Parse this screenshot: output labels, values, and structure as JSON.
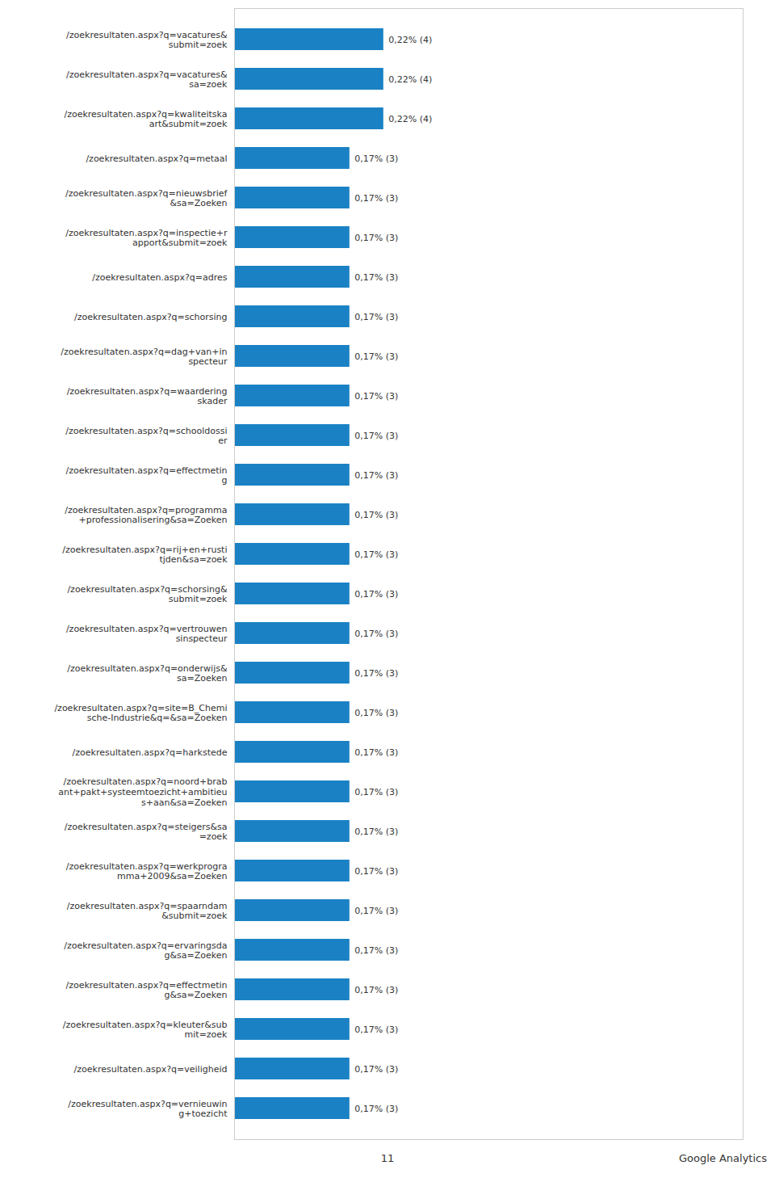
{
  "chart_data": {
    "type": "bar",
    "orientation": "horizontal",
    "categories": [
      "/zoekresultaten.aspx?q=vacatures&\nsubmit=zoek",
      "/zoekresultaten.aspx?q=vacatures&\nsa=zoek",
      "/zoekresultaten.aspx?q=kwaliteitska\nart&submit=zoek",
      "/zoekresultaten.aspx?q=metaal",
      "/zoekresultaten.aspx?q=nieuwsbrief\n&sa=Zoeken",
      "/zoekresultaten.aspx?q=inspectie+r\napport&submit=zoek",
      "/zoekresultaten.aspx?q=adres",
      "/zoekresultaten.aspx?q=schorsing",
      "/zoekresultaten.aspx?q=dag+van+in\nspecteur",
      "/zoekresultaten.aspx?q=waardering\nskader",
      "/zoekresultaten.aspx?q=schooldossi\ner",
      "/zoekresultaten.aspx?q=effectmetin\ng",
      "/zoekresultaten.aspx?q=programma\n+professionalisering&sa=Zoeken",
      "/zoekresultaten.aspx?q=rij+en+rusti\ntjden&sa=zoek",
      "/zoekresultaten.aspx?q=schorsing&\nsubmit=zoek",
      "/zoekresultaten.aspx?q=vertrouwen\nsinspecteur",
      "/zoekresultaten.aspx?q=onderwijs&\nsa=Zoeken",
      "/zoekresultaten.aspx?q=site=B_Chemi\nsche-Industrie&q=&sa=Zoeken",
      "/zoekresultaten.aspx?q=harkstede",
      "/zoekresultaten.aspx?q=noord+brab\nant+pakt+systeemtoezicht+ambitieu\ns+aan&sa=Zoeken",
      "/zoekresultaten.aspx?q=steigers&sa\n=zoek",
      "/zoekresultaten.aspx?q=werkprogra\nmma+2009&sa=Zoeken",
      "/zoekresultaten.aspx?q=spaarndam\n&submit=zoek",
      "/zoekresultaten.aspx?q=ervaringsda\ng&sa=Zoeken",
      "/zoekresultaten.aspx?q=effectmetin\ng&sa=Zoeken",
      "/zoekresultaten.aspx?q=kleuter&sub\nmit=zoek",
      "/zoekresultaten.aspx?q=veiligheid",
      "/zoekresultaten.aspx?q=vernieuwin\ng+toezicht"
    ],
    "values": [
      0.22,
      0.22,
      0.22,
      0.17,
      0.17,
      0.17,
      0.17,
      0.17,
      0.17,
      0.17,
      0.17,
      0.17,
      0.17,
      0.17,
      0.17,
      0.17,
      0.17,
      0.17,
      0.17,
      0.17,
      0.17,
      0.17,
      0.17,
      0.17,
      0.17,
      0.17,
      0.17,
      0.17
    ],
    "value_labels": [
      "0,22% (4)",
      "0,22% (4)",
      "0,22% (4)",
      "0,17% (3)",
      "0,17% (3)",
      "0,17% (3)",
      "0,17% (3)",
      "0,17% (3)",
      "0,17% (3)",
      "0,17% (3)",
      "0,17% (3)",
      "0,17% (3)",
      "0,17% (3)",
      "0,17% (3)",
      "0,17% (3)",
      "0,17% (3)",
      "0,17% (3)",
      "0,17% (3)",
      "0,17% (3)",
      "0,17% (3)",
      "0,17% (3)",
      "0,17% (3)",
      "0,17% (3)",
      "0,17% (3)",
      "0,17% (3)",
      "0,17% (3)",
      "0,17% (3)",
      "0,17% (3)"
    ],
    "color": "#1a82c4",
    "xlim": [
      0,
      0.75
    ],
    "xticks": [],
    "tick_labels": "y",
    "data_labels": true,
    "grid": false,
    "annotations": [
      "11",
      "Google Analytics"
    ]
  }
}
